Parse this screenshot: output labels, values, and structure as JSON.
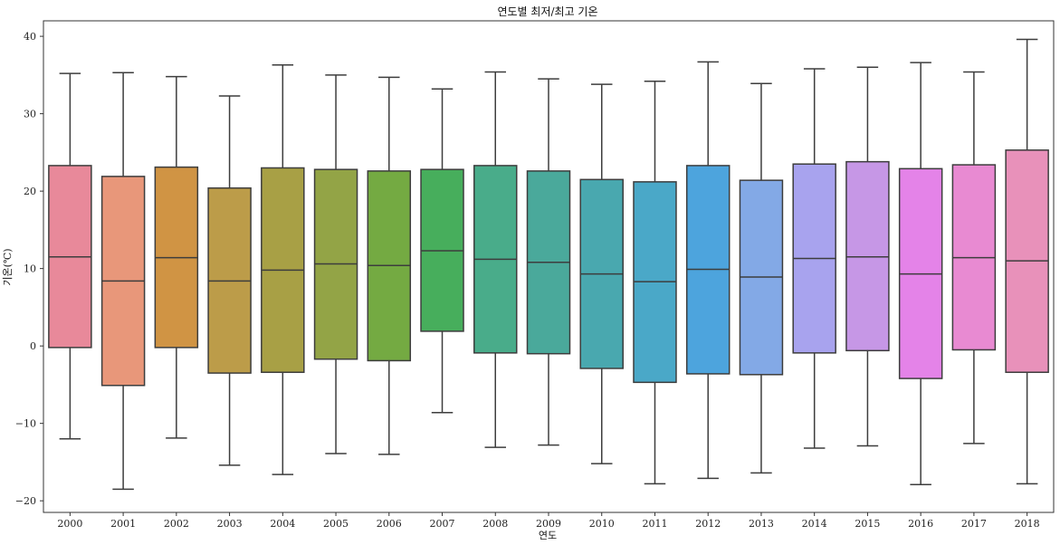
{
  "chart_data": {
    "type": "box",
    "title": "연도별 최저/최고 기온",
    "xlabel": "연도",
    "ylabel": "기온(℃)",
    "ylim": [
      -21.5,
      42
    ],
    "yticks": [
      -20,
      -10,
      0,
      10,
      20,
      30,
      40
    ],
    "ytick_labels": [
      "−20",
      "−10",
      "0",
      "10",
      "20",
      "30",
      "40"
    ],
    "grid": false,
    "categories": [
      "2000",
      "2001",
      "2002",
      "2003",
      "2004",
      "2005",
      "2006",
      "2007",
      "2008",
      "2009",
      "2010",
      "2011",
      "2012",
      "2013",
      "2014",
      "2015",
      "2016",
      "2017",
      "2018"
    ],
    "boxes": [
      {
        "whislo": -12.0,
        "q1": -0.2,
        "med": 11.5,
        "q3": 23.3,
        "whishi": 35.2
      },
      {
        "whislo": -18.5,
        "q1": -5.1,
        "med": 8.4,
        "q3": 21.9,
        "whishi": 35.3
      },
      {
        "whislo": -11.9,
        "q1": -0.2,
        "med": 11.4,
        "q3": 23.1,
        "whishi": 34.8
      },
      {
        "whislo": -15.4,
        "q1": -3.5,
        "med": 8.4,
        "q3": 20.4,
        "whishi": 32.3
      },
      {
        "whislo": -16.6,
        "q1": -3.4,
        "med": 9.8,
        "q3": 23.0,
        "whishi": 36.3
      },
      {
        "whislo": -13.9,
        "q1": -1.7,
        "med": 10.6,
        "q3": 22.8,
        "whishi": 35.0
      },
      {
        "whislo": -14.0,
        "q1": -1.9,
        "med": 10.4,
        "q3": 22.6,
        "whishi": 34.7
      },
      {
        "whislo": -8.6,
        "q1": 1.9,
        "med": 12.3,
        "q3": 22.8,
        "whishi": 33.2
      },
      {
        "whislo": -13.1,
        "q1": -0.9,
        "med": 11.2,
        "q3": 23.3,
        "whishi": 35.4
      },
      {
        "whislo": -12.8,
        "q1": -1.0,
        "med": 10.8,
        "q3": 22.6,
        "whishi": 34.5
      },
      {
        "whislo": -15.2,
        "q1": -2.9,
        "med": 9.3,
        "q3": 21.5,
        "whishi": 33.8
      },
      {
        "whislo": -17.8,
        "q1": -4.7,
        "med": 8.3,
        "q3": 21.2,
        "whishi": 34.2
      },
      {
        "whislo": -17.1,
        "q1": -3.6,
        "med": 9.9,
        "q3": 23.3,
        "whishi": 36.7
      },
      {
        "whislo": -16.4,
        "q1": -3.7,
        "med": 8.9,
        "q3": 21.4,
        "whishi": 33.9
      },
      {
        "whislo": -13.2,
        "q1": -0.9,
        "med": 11.3,
        "q3": 23.5,
        "whishi": 35.8
      },
      {
        "whislo": -12.9,
        "q1": -0.6,
        "med": 11.5,
        "q3": 23.8,
        "whishi": 36.0
      },
      {
        "whislo": -17.9,
        "q1": -4.2,
        "med": 9.3,
        "q3": 22.9,
        "whishi": 36.6
      },
      {
        "whislo": -12.6,
        "q1": -0.5,
        "med": 11.4,
        "q3": 23.4,
        "whishi": 35.4
      },
      {
        "whislo": -17.8,
        "q1": -3.4,
        "med": 11.0,
        "q3": 25.3,
        "whishi": 39.6
      }
    ],
    "colors": [
      "#e8899a",
      "#e8977a",
      "#d09444",
      "#bc9c49",
      "#a8a045",
      "#93a446",
      "#74aa42",
      "#47ae5c",
      "#49ac8a",
      "#4aa99b",
      "#49a8af",
      "#4aa8c8",
      "#4da4dd",
      "#83a9e6",
      "#a8a3ee",
      "#c697e6",
      "#e483e8",
      "#e88ad2",
      "#e891ba"
    ],
    "line_color": "#3d3d3d"
  }
}
